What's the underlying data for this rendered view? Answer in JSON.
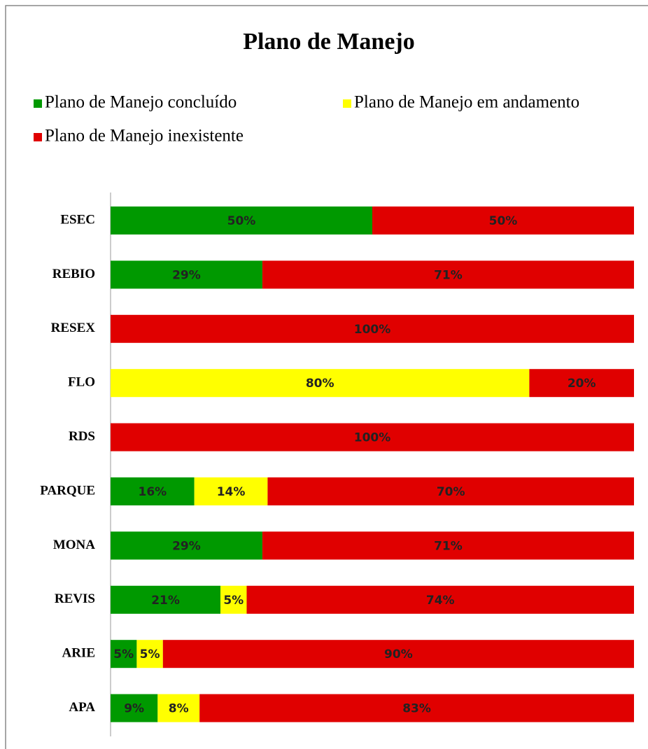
{
  "chart_data": {
    "type": "stacked_barh",
    "title": "Plano de Manejo",
    "categories": [
      "ESEC",
      "REBIO",
      "RESEX",
      "FLO",
      "RDS",
      "PARQUE",
      "MONA",
      "REVIS",
      "ARIE",
      "APA"
    ],
    "xlim": [
      0,
      100
    ],
    "series": [
      {
        "name": "Plano de Manejo concluído",
        "color": "#009900",
        "values": [
          50,
          29,
          null,
          null,
          null,
          16,
          29,
          21,
          5,
          9
        ],
        "value_labels": [
          "50%",
          "29%",
          null,
          null,
          null,
          "16%",
          "29%",
          "21%",
          "5%",
          "9%"
        ]
      },
      {
        "name": "Plano de Manejo em andamento",
        "color": "#ffff00",
        "values": [
          null,
          null,
          null,
          80,
          null,
          14,
          null,
          5,
          5,
          8
        ],
        "value_labels": [
          null,
          null,
          null,
          "80%",
          null,
          "14%",
          null,
          "5%",
          "5%",
          "8%"
        ]
      },
      {
        "name": "Plano de Manejo inexistente",
        "color": "#e00000",
        "values": [
          50,
          71,
          100,
          20,
          100,
          70,
          71,
          74,
          90,
          83
        ],
        "value_labels": [
          "50%",
          "71%",
          "100%",
          "20%",
          "100%",
          "70%",
          "71%",
          "74%",
          "90%",
          "83%"
        ]
      }
    ]
  }
}
